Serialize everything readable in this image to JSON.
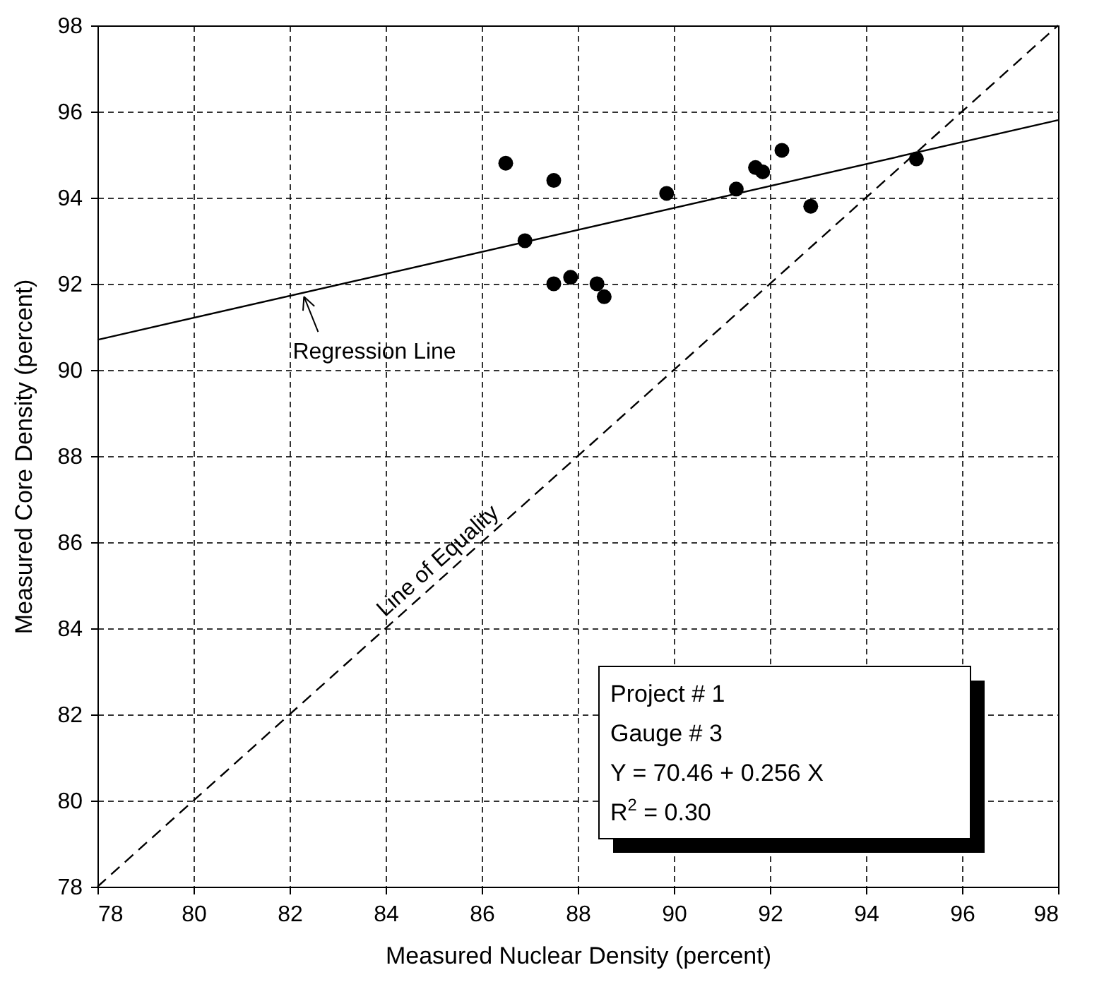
{
  "chart_data": {
    "type": "scatter",
    "xlabel": "Measured Nuclear Density (percent)",
    "ylabel": "Measured Core Density (percent)",
    "xlim": [
      78,
      98
    ],
    "ylim": [
      78,
      98
    ],
    "xticks": [
      78,
      80,
      82,
      84,
      86,
      88,
      90,
      92,
      94,
      96,
      98
    ],
    "yticks": [
      78,
      80,
      82,
      84,
      86,
      88,
      90,
      92,
      94,
      96,
      98
    ],
    "grid": true,
    "series": [
      {
        "marker": "circle",
        "color": "#000000",
        "x": [
          86.5,
          86.9,
          87.5,
          87.5,
          87.85,
          88.4,
          88.55,
          89.85,
          91.3,
          91.7,
          91.85,
          92.25,
          92.85,
          95.05
        ],
        "values": [
          94.8,
          93.0,
          94.4,
          92.0,
          92.15,
          92.0,
          91.7,
          94.1,
          94.2,
          94.7,
          94.6,
          95.1,
          93.8,
          94.9
        ]
      },
      {
        "type": "line",
        "color": "#000000",
        "line_style": "solid",
        "x": [
          78,
          98
        ],
        "values": [
          90.7,
          95.8
        ]
      },
      {
        "type": "line",
        "color": "#000000",
        "line_style": "dashed",
        "x": [
          78,
          98
        ],
        "values": [
          78,
          98
        ]
      }
    ],
    "annotations": [
      {
        "text": "Regression Line",
        "x": 82.3,
        "y": 91.8
      },
      {
        "text": "Line of Equality",
        "x": 85.3,
        "y": 85.3
      },
      "Project #  1",
      "Gauge #  3",
      "Y  = 70.46 + 0.256 X",
      "R$^{2}$ = 0.30"
    ]
  }
}
